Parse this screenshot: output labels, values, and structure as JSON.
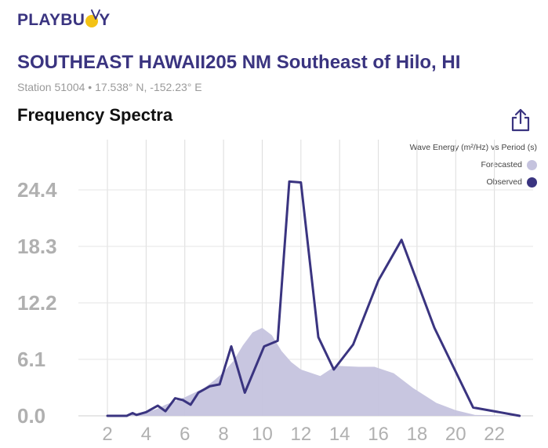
{
  "brand": {
    "name_left": "PLAYBU",
    "name_right": "Y",
    "color": "#3a3480",
    "accent": "#f3c215"
  },
  "header": {
    "title": "SOUTHEAST HAWAII205 NM Southeast of Hilo, HI",
    "subtitle": "Station 51004 • 17.538° N, -152.23° E"
  },
  "section": {
    "title": "Frequency Spectra",
    "share_icon": "share-icon"
  },
  "chart_data": {
    "type": "line",
    "legend_title": "Wave Energy (m²/Hz) vs Period (s)",
    "legend_placement": "top-right",
    "grid": true,
    "xlim": [
      0.5,
      24
    ],
    "ylim": [
      0,
      30.5
    ],
    "x_ticks": [
      "2",
      "4",
      "6",
      "8",
      "10",
      "12",
      "14",
      "16",
      "18",
      "20",
      "22"
    ],
    "y_ticks": [
      "0.0",
      "6.1",
      "12.2",
      "18.3",
      "24.4"
    ],
    "series": [
      {
        "name": "Forecasted",
        "style": "area",
        "color": "#c5c3de",
        "x": [
          2,
          3,
          3.5,
          4,
          4.5,
          5,
          5.5,
          6,
          6.5,
          7,
          7.5,
          8,
          8.5,
          9,
          9.5,
          10,
          10.5,
          11,
          11.5,
          12,
          13,
          13.8,
          15,
          15.8,
          16.8,
          17.8,
          19,
          20,
          21,
          23.5
        ],
        "y": [
          0,
          0.05,
          0.2,
          0.4,
          0.7,
          1.2,
          1.6,
          2.0,
          2.5,
          3.0,
          3.8,
          4.7,
          5.9,
          7.6,
          9.0,
          9.5,
          8.7,
          7.0,
          5.8,
          5.0,
          4.3,
          5.4,
          5.3,
          5.3,
          4.6,
          3.0,
          1.4,
          0.6,
          0.1,
          0
        ]
      },
      {
        "name": "Observed",
        "style": "line",
        "color": "#3a3480",
        "x": [
          2,
          3,
          3.3,
          3.5,
          4,
          4.6,
          5,
          5.5,
          5.9,
          6.3,
          6.7,
          7.3,
          7.8,
          8.4,
          9.1,
          10.1,
          10.8,
          11.4,
          12.0,
          12.9,
          13.7,
          14.7,
          16.0,
          17.2,
          18.9,
          20.9,
          23.3
        ],
        "y": [
          0,
          0,
          0.3,
          0.1,
          0.4,
          1.1,
          0.5,
          1.9,
          1.7,
          1.2,
          2.5,
          3.2,
          3.4,
          7.5,
          2.5,
          7.5,
          8.1,
          25.3,
          25.2,
          8.5,
          5.0,
          7.7,
          14.6,
          19.0,
          9.5,
          0.9,
          0
        ]
      }
    ]
  }
}
